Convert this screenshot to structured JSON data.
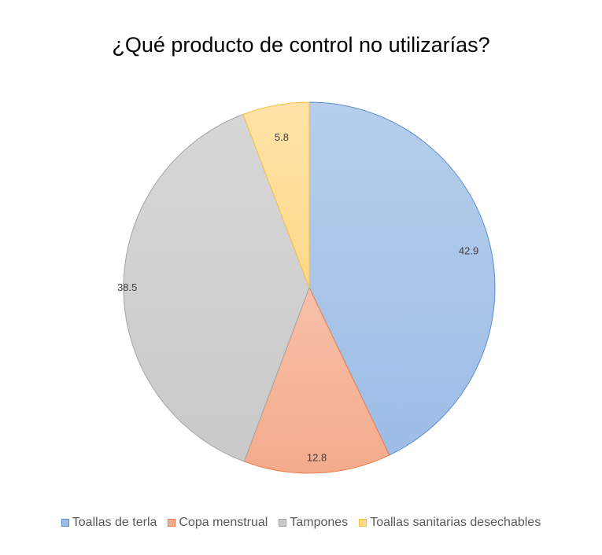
{
  "chart_data": {
    "type": "pie",
    "title": "¿Qué producto de control no utilizarías?",
    "categories": [
      "Toallas de terla",
      "Copa menstrual",
      "Tampones",
      "Toallas sanitarias desechables"
    ],
    "values": [
      42.9,
      12.8,
      38.5,
      5.8
    ],
    "data_labels": [
      "42.9",
      "12.8",
      "38.5",
      "5.8"
    ],
    "colors": [
      "#9dbde6",
      "#f4ab8c",
      "#c9c9c9",
      "#ffd98a"
    ],
    "edge_colors": [
      "#5b8fd0",
      "#f07d4c",
      "#a5a5a5",
      "#f5c242"
    ],
    "legend_position": "bottom"
  }
}
